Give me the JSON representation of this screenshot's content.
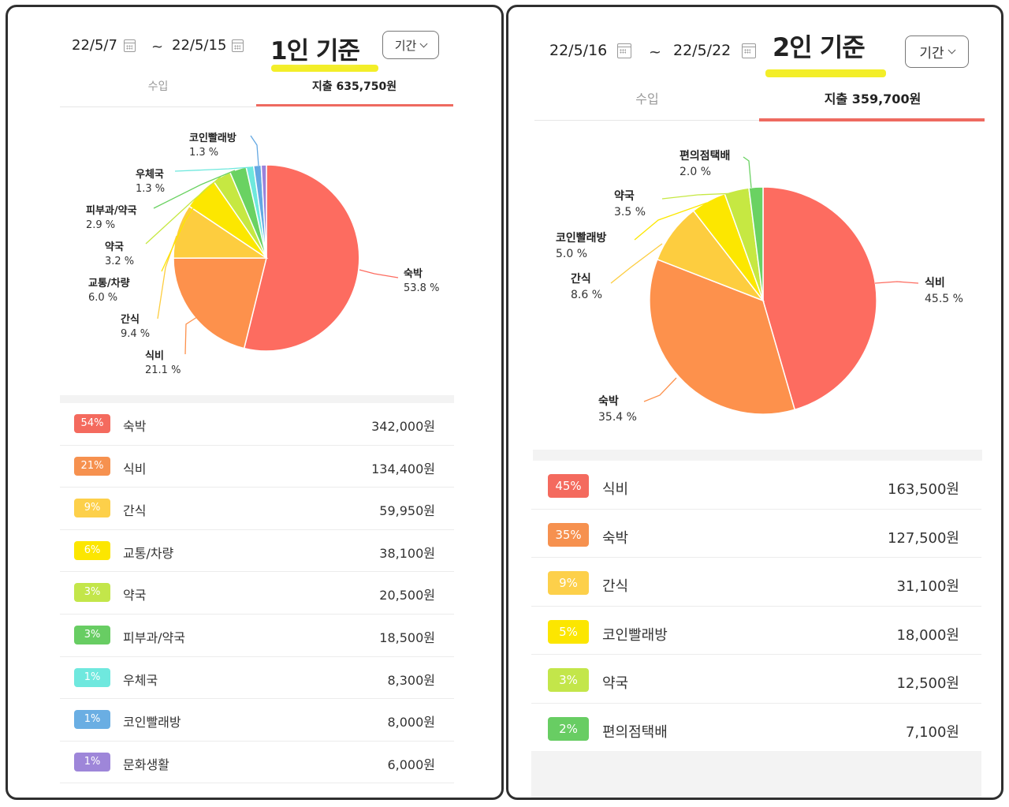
{
  "panels": [
    {
      "start_date": "22/5/7",
      "end_date": "22/5/15",
      "tilde": "~",
      "title": "1인 기준",
      "period_label": "기간",
      "tab_income": "수입",
      "tab_expense": "지출  635,750원",
      "chart_data": {
        "type": "pie",
        "slices": [
          {
            "label": "숙박",
            "percent_label": "53.8 %",
            "value": 53.8,
            "color": "#fd6c60"
          },
          {
            "label": "식비",
            "percent_label": "21.1 %",
            "value": 21.1,
            "color": "#fd914c"
          },
          {
            "label": "간식",
            "percent_label": "9.4 %",
            "value": 9.4,
            "color": "#fdcd3f"
          },
          {
            "label": "교통/차량",
            "percent_label": "6.0 %",
            "value": 6.0,
            "color": "#fce700"
          },
          {
            "label": "약국",
            "percent_label": "3.2 %",
            "value": 3.2,
            "color": "#c6e842"
          },
          {
            "label": "피부과/약국",
            "percent_label": "2.9 %",
            "value": 2.9,
            "color": "#6ad262"
          },
          {
            "label": "우체국",
            "percent_label": "1.3 %",
            "value": 1.3,
            "color": "#6ee8dd"
          },
          {
            "label": "코인빨래방",
            "percent_label": "1.3 %",
            "value": 1.3,
            "color": "#64a8e2"
          },
          {
            "label": "문화생활",
            "value": 0.9,
            "color": "#9a83db"
          }
        ]
      },
      "rows": [
        {
          "pct": "54%",
          "name": "숙박",
          "amount": "342,000원",
          "color": "#f46a5e"
        },
        {
          "pct": "21%",
          "name": "식비",
          "amount": "134,400원",
          "color": "#f6914f"
        },
        {
          "pct": "9%",
          "name": "간식",
          "amount": "59,950원",
          "color": "#fdd04a"
        },
        {
          "pct": "6%",
          "name": "교통/차량",
          "amount": "38,100원",
          "color": "#fce600"
        },
        {
          "pct": "3%",
          "name": "약국",
          "amount": "20,500원",
          "color": "#c3e64a"
        },
        {
          "pct": "3%",
          "name": "피부과/약국",
          "amount": "18,500원",
          "color": "#68cd63"
        },
        {
          "pct": "1%",
          "name": "우체국",
          "amount": "8,300원",
          "color": "#6fe8de"
        },
        {
          "pct": "1%",
          "name": "코인빨래방",
          "amount": "8,000원",
          "color": "#6aaee3"
        },
        {
          "pct": "1%",
          "name": "문화생활",
          "amount": "6,000원",
          "color": "#9e86d9"
        }
      ]
    },
    {
      "start_date": "22/5/16",
      "end_date": "22/5/22",
      "tilde": "~",
      "title": "2인 기준",
      "period_label": "기간",
      "tab_income": "수입",
      "tab_expense": "지출  359,700원",
      "chart_data": {
        "type": "pie",
        "slices": [
          {
            "label": "식비",
            "percent_label": "45.5 %",
            "value": 45.5,
            "color": "#fd6c60"
          },
          {
            "label": "숙박",
            "percent_label": "35.4 %",
            "value": 35.4,
            "color": "#fd914c"
          },
          {
            "label": "간식",
            "percent_label": "8.6 %",
            "value": 8.6,
            "color": "#fdcd3f"
          },
          {
            "label": "코인빨래방",
            "percent_label": "5.0 %",
            "value": 5.0,
            "color": "#fce700"
          },
          {
            "label": "약국",
            "percent_label": "3.5 %",
            "value": 3.5,
            "color": "#c6e842"
          },
          {
            "label": "편의점택배",
            "percent_label": "2.0 %",
            "value": 2.0,
            "color": "#6ad262"
          }
        ]
      },
      "rows": [
        {
          "pct": "45%",
          "name": "식비",
          "amount": "163,500원",
          "color": "#f46a5e"
        },
        {
          "pct": "35%",
          "name": "숙박",
          "amount": "127,500원",
          "color": "#f6914f"
        },
        {
          "pct": "9%",
          "name": "간식",
          "amount": "31,100원",
          "color": "#fdd04a"
        },
        {
          "pct": "5%",
          "name": "코인빨래방",
          "amount": "18,000원",
          "color": "#fce600"
        },
        {
          "pct": "3%",
          "name": "약국",
          "amount": "12,500원",
          "color": "#c3e64a"
        },
        {
          "pct": "2%",
          "name": "편의점택배",
          "amount": "7,100원",
          "color": "#68cd63"
        }
      ]
    }
  ]
}
